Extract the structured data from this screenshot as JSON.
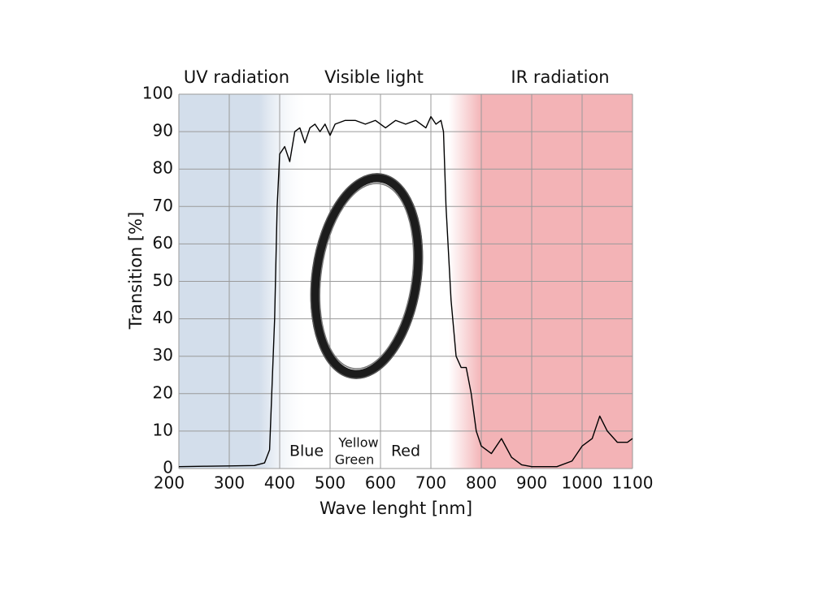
{
  "chart_data": {
    "type": "line",
    "xlabel": "Wave lenght [nm]",
    "ylabel": "Transition [%]",
    "annotations": [
      "UV radiation",
      "Visible light",
      "IR radiation",
      "Blue",
      "Yellow",
      "Green",
      "Red"
    ],
    "x": [
      200,
      250,
      300,
      350,
      370,
      380,
      390,
      395,
      400,
      410,
      420,
      430,
      440,
      450,
      460,
      470,
      480,
      490,
      500,
      510,
      530,
      550,
      570,
      590,
      610,
      630,
      650,
      670,
      690,
      700,
      710,
      720,
      725,
      730,
      740,
      750,
      760,
      770,
      780,
      790,
      800,
      820,
      840,
      860,
      880,
      900,
      950,
      980,
      1000,
      1020,
      1035,
      1050,
      1070,
      1090,
      1100
    ],
    "values": [
      0.5,
      0.6,
      0.7,
      0.8,
      1.5,
      5,
      40,
      70,
      84,
      86,
      82,
      90,
      91,
      87,
      91,
      92,
      90,
      92,
      89,
      92,
      93,
      93,
      92,
      93,
      91,
      93,
      92,
      93,
      91,
      94,
      92,
      93,
      90,
      70,
      45,
      30,
      27,
      27,
      20,
      10,
      6,
      4,
      8,
      3,
      1,
      0.5,
      0.5,
      2,
      6,
      8,
      14,
      10,
      7,
      7,
      8
    ],
    "color": "#000000",
    "xlim": [
      200,
      1100
    ],
    "ylim": [
      0,
      100
    ],
    "xticks": [
      200,
      300,
      400,
      500,
      600,
      700,
      800,
      900,
      1000,
      1100
    ],
    "yticks": [
      0,
      10,
      20,
      30,
      40,
      50,
      60,
      70,
      80,
      90,
      100
    ],
    "grid": true
  }
}
